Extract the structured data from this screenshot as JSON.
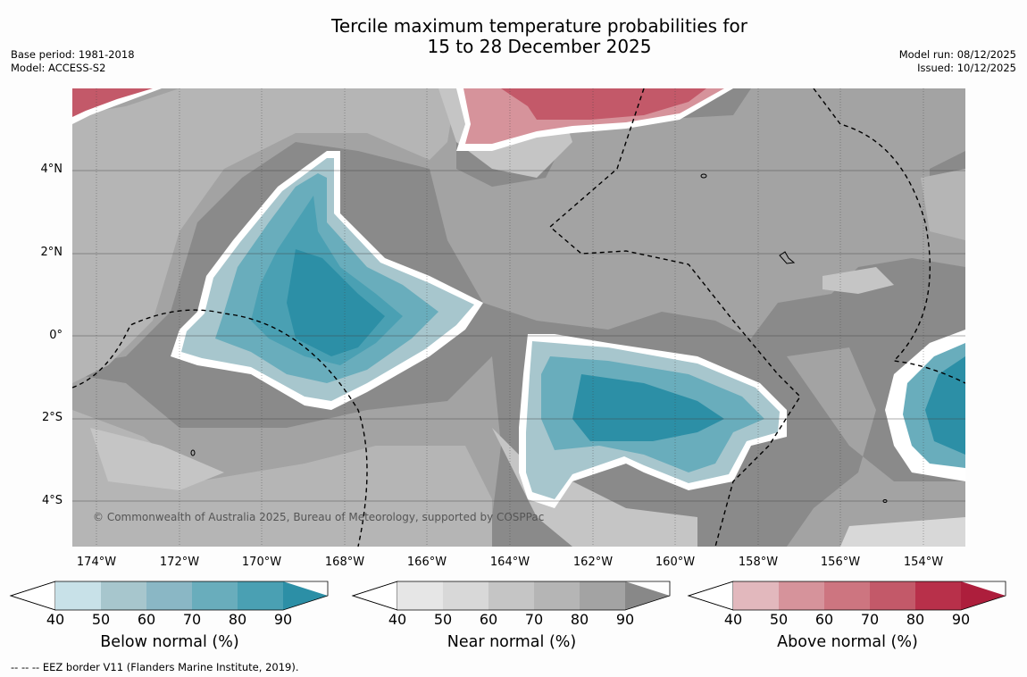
{
  "title": {
    "line1": "Tercile maximum temperature probabilities for",
    "line2": "15 to 28 December 2025"
  },
  "meta_left": {
    "base_period": "Base period: 1981-2018",
    "model": "Model: ACCESS-S2"
  },
  "meta_right": {
    "model_run": "Model run: 08/12/2025",
    "issued": "Issued: 10/12/2025"
  },
  "map": {
    "lat_labels": [
      "4°N",
      "2°N",
      "0°",
      "2°S",
      "4°S"
    ],
    "lon_labels": [
      "174°W",
      "172°W",
      "170°W",
      "168°W",
      "166°W",
      "164°W",
      "162°W",
      "160°W",
      "158°W",
      "156°W",
      "154°W"
    ],
    "copyright": "© Commonwealth of Australia 2025, Bureau of Meteorology, supported by COSPPac"
  },
  "colorbars": {
    "below": {
      "label": "Below normal (%)",
      "ticks": [
        "40",
        "50",
        "60",
        "70",
        "80",
        "90"
      ],
      "colors": [
        "#c8e1e8",
        "#a7c6cd",
        "#8ab7c5",
        "#69adbc",
        "#4aa0b3",
        "#2c8fa6"
      ]
    },
    "near": {
      "label": "Near normal (%)",
      "ticks": [
        "40",
        "50",
        "60",
        "70",
        "80",
        "90"
      ],
      "colors": [
        "#e6e6e6",
        "#d8d8d8",
        "#c5c5c5",
        "#b5b5b5",
        "#a3a3a3",
        "#888888"
      ]
    },
    "above": {
      "label": "Above normal (%)",
      "ticks": [
        "40",
        "50",
        "60",
        "70",
        "80",
        "90"
      ],
      "colors": [
        "#e2b8bd",
        "#d6939b",
        "#cd7580",
        "#c35969",
        "#b8304a",
        "#ad1e3c"
      ]
    }
  },
  "footnote": "--  --  -- EEZ border V11 (Flanders Marine Institute, 2019)."
}
